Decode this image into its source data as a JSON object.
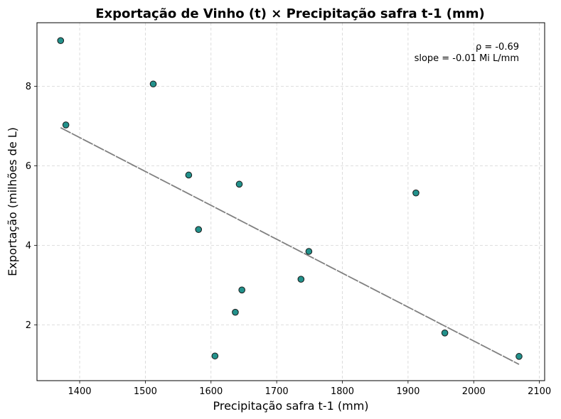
{
  "chart_data": {
    "type": "scatter",
    "title": "Exportação de Vinho (t) × Precipitação safra t-1 (mm)",
    "xlabel": "Precipitação safra t-1 (mm)",
    "ylabel": "Exportação (milhões de L)",
    "xlim": [
      1335,
      2108
    ],
    "ylim": [
      0.6,
      9.6
    ],
    "xticks": [
      1400,
      1500,
      1600,
      1700,
      1800,
      1900,
      2000,
      2100
    ],
    "yticks": [
      2,
      4,
      6,
      8
    ],
    "xtick_labels": [
      "1400",
      "1500",
      "1600",
      "1700",
      "1800",
      "1900",
      "2000",
      "2100"
    ],
    "ytick_labels": [
      "2",
      "4",
      "6",
      "8"
    ],
    "grid": true,
    "points": [
      {
        "x": 1371,
        "y": 9.15
      },
      {
        "x": 1379,
        "y": 7.03
      },
      {
        "x": 1512,
        "y": 8.06
      },
      {
        "x": 1566,
        "y": 5.77
      },
      {
        "x": 1581,
        "y": 4.4
      },
      {
        "x": 1606,
        "y": 1.22
      },
      {
        "x": 1637,
        "y": 2.32
      },
      {
        "x": 1643,
        "y": 5.54
      },
      {
        "x": 1647,
        "y": 2.88
      },
      {
        "x": 1737,
        "y": 3.15
      },
      {
        "x": 1749,
        "y": 3.85
      },
      {
        "x": 1912,
        "y": 5.32
      },
      {
        "x": 1956,
        "y": 1.8
      },
      {
        "x": 2069,
        "y": 1.21
      }
    ],
    "trendline": {
      "x": [
        1371,
        2069
      ],
      "y": [
        6.96,
        1.01
      ]
    },
    "colors": {
      "point_fill": "#22918b",
      "point_edge": "#1a1a1a",
      "trendline": "#808080",
      "grid": "#d3d3d3"
    },
    "annotation": {
      "lines": [
        "ρ = -0.69",
        "slope = -0.01 Mi L/mm"
      ],
      "placement": "top-right"
    }
  }
}
